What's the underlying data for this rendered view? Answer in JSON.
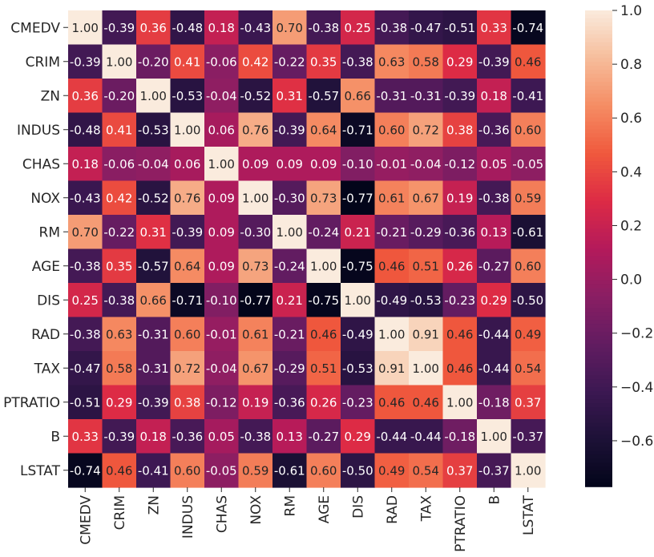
{
  "chart_data": {
    "type": "heatmap",
    "title": "",
    "xlabel": "",
    "ylabel": "",
    "labels": [
      "CMEDV",
      "CRIM",
      "ZN",
      "INDUS",
      "CHAS",
      "NOX",
      "RM",
      "AGE",
      "DIS",
      "RAD",
      "TAX",
      "PTRATIO",
      "B",
      "LSTAT"
    ],
    "matrix": [
      [
        1.0,
        -0.39,
        0.36,
        -0.48,
        0.18,
        -0.43,
        0.7,
        -0.38,
        0.25,
        -0.38,
        -0.47,
        -0.51,
        0.33,
        -0.74
      ],
      [
        -0.39,
        1.0,
        -0.2,
        0.41,
        -0.06,
        0.42,
        -0.22,
        0.35,
        -0.38,
        0.63,
        0.58,
        0.29,
        -0.39,
        0.46
      ],
      [
        0.36,
        -0.2,
        1.0,
        -0.53,
        -0.04,
        -0.52,
        0.31,
        -0.57,
        0.66,
        -0.31,
        -0.31,
        -0.39,
        0.18,
        -0.41
      ],
      [
        -0.48,
        0.41,
        -0.53,
        1.0,
        0.06,
        0.76,
        -0.39,
        0.64,
        -0.71,
        0.6,
        0.72,
        0.38,
        -0.36,
        0.6
      ],
      [
        0.18,
        -0.06,
        -0.04,
        0.06,
        1.0,
        0.09,
        0.09,
        0.09,
        -0.1,
        -0.01,
        -0.04,
        -0.12,
        0.05,
        -0.05
      ],
      [
        -0.43,
        0.42,
        -0.52,
        0.76,
        0.09,
        1.0,
        -0.3,
        0.73,
        -0.77,
        0.61,
        0.67,
        0.19,
        -0.38,
        0.59
      ],
      [
        0.7,
        -0.22,
        0.31,
        -0.39,
        0.09,
        -0.3,
        1.0,
        -0.24,
        0.21,
        -0.21,
        -0.29,
        -0.36,
        0.13,
        -0.61
      ],
      [
        -0.38,
        0.35,
        -0.57,
        0.64,
        0.09,
        0.73,
        -0.24,
        1.0,
        -0.75,
        0.46,
        0.51,
        0.26,
        -0.27,
        0.6
      ],
      [
        0.25,
        -0.38,
        0.66,
        -0.71,
        -0.1,
        -0.77,
        0.21,
        -0.75,
        1.0,
        -0.49,
        -0.53,
        -0.23,
        0.29,
        -0.5
      ],
      [
        -0.38,
        0.63,
        -0.31,
        0.6,
        -0.01,
        0.61,
        -0.21,
        0.46,
        -0.49,
        1.0,
        0.91,
        0.46,
        -0.44,
        0.49
      ],
      [
        -0.47,
        0.58,
        -0.31,
        0.72,
        -0.04,
        0.67,
        -0.29,
        0.51,
        -0.53,
        0.91,
        1.0,
        0.46,
        -0.44,
        0.54
      ],
      [
        -0.51,
        0.29,
        -0.39,
        0.38,
        -0.12,
        0.19,
        -0.36,
        0.26,
        -0.23,
        0.46,
        0.46,
        1.0,
        -0.18,
        0.37
      ],
      [
        0.33,
        -0.39,
        0.18,
        -0.36,
        0.05,
        -0.38,
        0.13,
        -0.27,
        0.29,
        -0.44,
        -0.44,
        -0.18,
        1.0,
        -0.37
      ],
      [
        -0.74,
        0.46,
        -0.41,
        0.6,
        -0.05,
        0.59,
        -0.61,
        0.6,
        -0.5,
        0.49,
        0.54,
        0.37,
        -0.37,
        1.0
      ]
    ],
    "value_format": "2 decimals",
    "colorscale": "rocket",
    "vmin": -0.77,
    "vmax": 1.0,
    "colorbar": {
      "ticks": [
        -0.6,
        -0.4,
        -0.2,
        0.0,
        0.2,
        0.4,
        0.6,
        0.8,
        1.0
      ],
      "tick_labels": [
        "−0.6",
        "−0.4",
        "−0.2",
        "0.0",
        "0.2",
        "0.4",
        "0.6",
        "0.8",
        "1.0"
      ]
    },
    "grid": false,
    "legend": "right"
  }
}
